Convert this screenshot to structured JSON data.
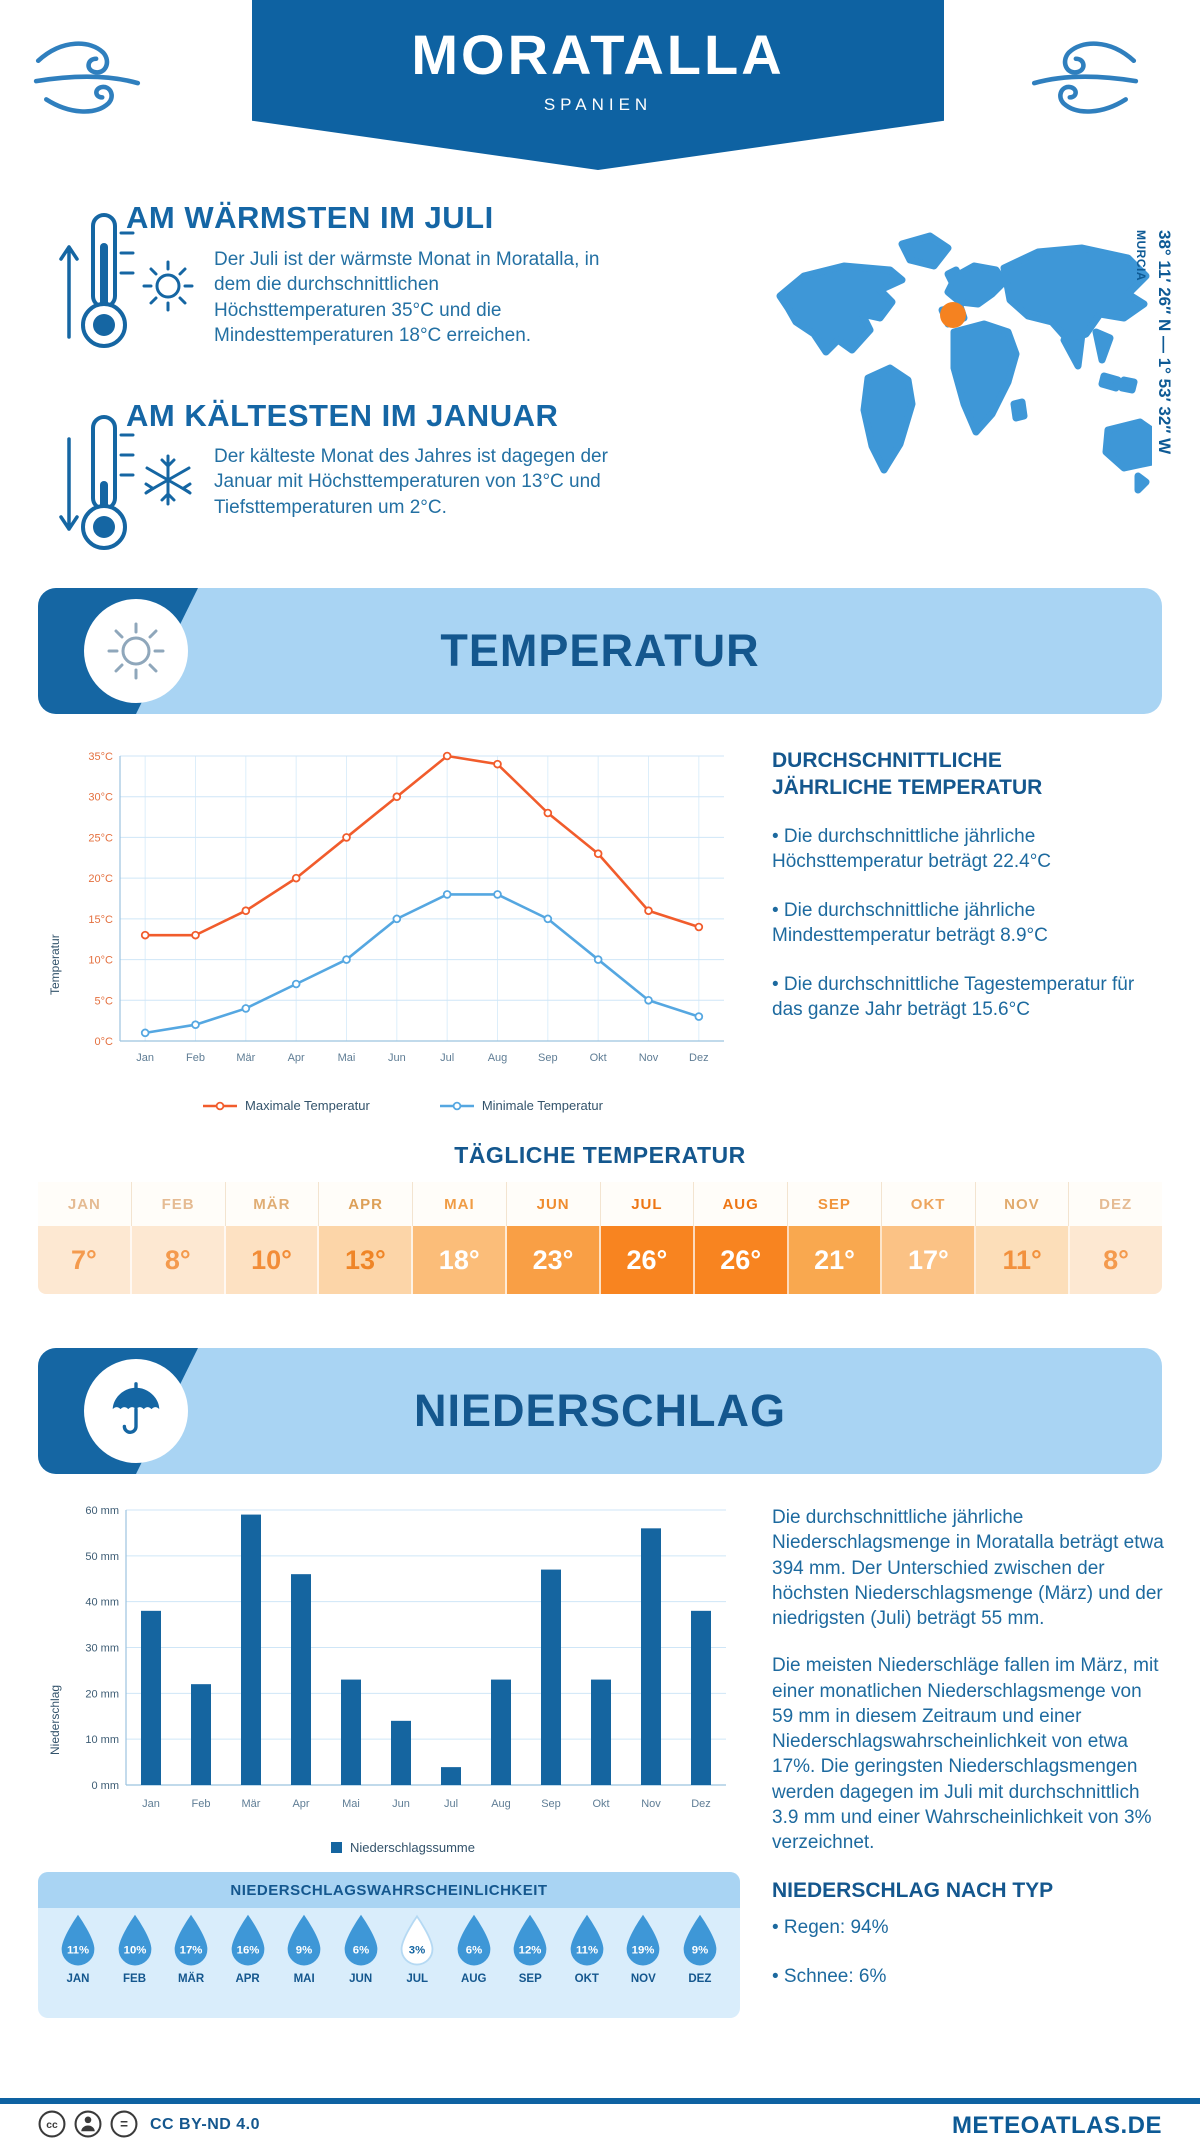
{
  "header": {
    "title": "MORATALLA",
    "subtitle": "SPANIEN"
  },
  "location": {
    "coordinates": "38° 11′ 26″ N — 1° 53′ 32″ W",
    "region": "MURCIA"
  },
  "highlights": {
    "warmest": {
      "heading": "AM WÄRMSTEN IM JULI",
      "text": "Der Juli ist der wärmste Monat in Moratalla, in dem die durchschnittlichen Höchsttemperaturen 35°C und die Mindesttemperaturen 18°C erreichen."
    },
    "coldest": {
      "heading": "AM KÄLTESTEN IM JANUAR",
      "text": "Der kälteste Monat des Jahres ist dagegen der Januar mit Höchsttemperaturen von 13°C und Tiefsttemperaturen um 2°C."
    }
  },
  "temperature_section": {
    "title": "TEMPERATUR",
    "annual": {
      "heading": "DURCHSCHNITTLICHE JÄHRLICHE TEMPERATUR",
      "bullets": [
        "• Die durchschnittliche jährliche Höchsttemperatur beträgt 22.4°C",
        "• Die durchschnittliche jährliche Mindesttemperatur beträgt 8.9°C",
        "• Die durchschnittliche Tagestemperatur für das ganze Jahr beträgt 15.6°C"
      ]
    },
    "daily": {
      "heading": "TÄGLICHE TEMPERATUR",
      "columns": [
        {
          "month": "JAN",
          "value": "7°",
          "bg": "#fde8d2",
          "value_color": "#f49a4d",
          "header_color": "#e5bb93"
        },
        {
          "month": "FEB",
          "value": "8°",
          "bg": "#fde8d2",
          "value_color": "#f49a4d",
          "header_color": "#e5bb93"
        },
        {
          "month": "MÄR",
          "value": "10°",
          "bg": "#fde1c2",
          "value_color": "#f28d38",
          "header_color": "#e0ad74"
        },
        {
          "month": "APR",
          "value": "13°",
          "bg": "#fcd5a8",
          "value_color": "#ef8527",
          "header_color": "#dda058"
        },
        {
          "month": "MAI",
          "value": "18°",
          "bg": "#fbbd79",
          "value_color": "#ffffff",
          "header_color": "#f09c45"
        },
        {
          "month": "JUN",
          "value": "23°",
          "bg": "#f99f45",
          "value_color": "#ffffff",
          "header_color": "#ef8c2e"
        },
        {
          "month": "JUL",
          "value": "26°",
          "bg": "#f88420",
          "value_color": "#ffffff",
          "header_color": "#ee7614"
        },
        {
          "month": "AUG",
          "value": "26°",
          "bg": "#f88420",
          "value_color": "#ffffff",
          "header_color": "#ee7614"
        },
        {
          "month": "SEP",
          "value": "21°",
          "bg": "#f9a84f",
          "value_color": "#ffffff",
          "header_color": "#f0943b"
        },
        {
          "month": "OKT",
          "value": "17°",
          "bg": "#fbc285",
          "value_color": "#ffffff",
          "header_color": "#eda55e"
        },
        {
          "month": "NOV",
          "value": "11°",
          "bg": "#fcdeb9",
          "value_color": "#f2913d",
          "header_color": "#e1ab6e"
        },
        {
          "month": "DEZ",
          "value": "8°",
          "bg": "#fde8d2",
          "value_color": "#f49a4d",
          "header_color": "#e5bb93"
        }
      ]
    }
  },
  "precipitation_section": {
    "title": "NIEDERSCHLAG",
    "paragraphs": [
      "Die durchschnittliche jährliche Niederschlagsmenge in Moratalla beträgt etwa 394 mm. Der Unterschied zwischen der höchsten Niederschlagsmenge (März) und der niedrigsten (Juli) beträgt 55 mm.",
      "Die meisten Niederschläge fallen im März, mit einer monatlichen Niederschlagsmenge von 59 mm in diesem Zeitraum und einer Niederschlagswahrscheinlichkeit von etwa 17%. Die geringsten Niederschlagsmengen werden dagegen im Juli mit durchschnittlich 3.9 mm und einer Wahrscheinlichkeit von 3% verzeichnet."
    ],
    "by_type": {
      "heading": "NIEDERSCHLAG NACH TYP",
      "bullets": [
        "• Regen: 94%",
        "• Schnee: 6%"
      ]
    },
    "probability": {
      "title": "NIEDERSCHLAGSWAHRSCHEINLICHKEIT",
      "drop_color": "#3e97d7",
      "low_text_color": "#1566a3",
      "items": [
        {
          "month": "JAN",
          "percent": "11%"
        },
        {
          "month": "FEB",
          "percent": "10%"
        },
        {
          "month": "MÄR",
          "percent": "17%"
        },
        {
          "month": "APR",
          "percent": "16%"
        },
        {
          "month": "MAI",
          "percent": "9%"
        },
        {
          "month": "JUN",
          "percent": "6%"
        },
        {
          "month": "JUL",
          "percent": "3%",
          "low": true
        },
        {
          "month": "AUG",
          "percent": "6%"
        },
        {
          "month": "SEP",
          "percent": "12%"
        },
        {
          "month": "OKT",
          "percent": "11%"
        },
        {
          "month": "NOV",
          "percent": "19%"
        },
        {
          "month": "DEZ",
          "percent": "9%"
        }
      ]
    }
  },
  "chart_data": [
    {
      "type": "line",
      "title": "TEMPERATUR",
      "ylabel": "Temperatur",
      "x": [
        "Jan",
        "Feb",
        "Mär",
        "Apr",
        "Mai",
        "Jun",
        "Jul",
        "Aug",
        "Sep",
        "Okt",
        "Nov",
        "Dez"
      ],
      "ylim": [
        0,
        35
      ],
      "ytick_step": 5,
      "yunit": "°C",
      "grid": true,
      "legend_position": "bottom",
      "series": [
        {
          "name": "Maximale Temperatur",
          "color": "#f15c2c",
          "values": [
            13,
            13,
            16,
            20,
            25,
            30,
            35,
            34,
            28,
            23,
            16,
            14
          ]
        },
        {
          "name": "Minimale Temperatur",
          "color": "#55a7e1",
          "values": [
            1,
            2,
            4,
            7,
            10,
            15,
            18,
            18,
            15,
            10,
            5,
            3
          ]
        }
      ]
    },
    {
      "type": "bar",
      "title": "NIEDERSCHLAG",
      "ylabel": "Niederschlag",
      "categories": [
        "Jan",
        "Feb",
        "Mär",
        "Apr",
        "Mai",
        "Jun",
        "Jul",
        "Aug",
        "Sep",
        "Okt",
        "Nov",
        "Dez"
      ],
      "values": [
        38,
        22,
        59,
        46,
        23,
        14,
        3.9,
        23,
        47,
        23,
        56,
        38
      ],
      "ylim": [
        0,
        60
      ],
      "ytick_step": 10,
      "yunit": " mm",
      "bar_color": "#1565a0",
      "legend": "Niederschlagssumme",
      "grid": true,
      "legend_position": "bottom"
    }
  ],
  "footer": {
    "license": "CC BY-ND 4.0",
    "site": "METEOATLAS.DE"
  },
  "colors": {
    "brand_blue": "#1566a3",
    "banner_blue": "#0e62a2",
    "band_blue": "#a9d4f3",
    "bar_blue": "#1565a0",
    "max_line": "#f15c2c",
    "min_line": "#55a7e1",
    "map_blue": "#3e97d7",
    "marker_orange": "#f58220"
  }
}
